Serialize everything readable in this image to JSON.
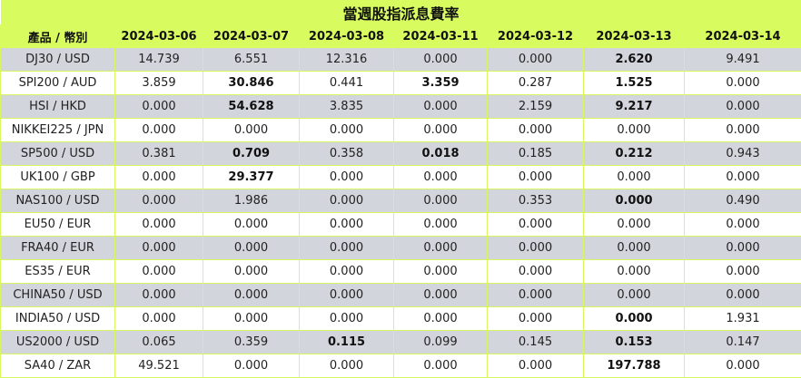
{
  "title": "當週股指派息費率",
  "header": {
    "product_label": "產品 / 幣別",
    "dates": [
      "2024-03-06",
      "2024-03-07",
      "2024-03-08",
      "2024-03-11",
      "2024-03-12",
      "2024-03-13",
      "2024-03-14"
    ]
  },
  "colors": {
    "header_bg": "#d8fb60",
    "stripe_bg": "#d3d5dc",
    "border": "#d6f75f"
  },
  "rows": [
    {
      "product": "DJ30 / USD",
      "values": [
        "14.739",
        "6.551",
        "12.316",
        "0.000",
        "0.000",
        "2.620",
        "9.491"
      ],
      "bold": [
        5
      ]
    },
    {
      "product": "SPI200 / AUD",
      "values": [
        "3.859",
        "30.846",
        "0.441",
        "3.359",
        "0.287",
        "1.525",
        "0.000"
      ],
      "bold": [
        1,
        3,
        5
      ]
    },
    {
      "product": "HSI / HKD",
      "values": [
        "0.000",
        "54.628",
        "3.835",
        "0.000",
        "2.159",
        "9.217",
        "0.000"
      ],
      "bold": [
        1,
        5
      ]
    },
    {
      "product": "NIKKEI225 / JPN",
      "values": [
        "0.000",
        "0.000",
        "0.000",
        "0.000",
        "0.000",
        "0.000",
        "0.000"
      ],
      "bold": []
    },
    {
      "product": "SP500 / USD",
      "values": [
        "0.381",
        "0.709",
        "0.358",
        "0.018",
        "0.185",
        "0.212",
        "0.943"
      ],
      "bold": [
        1,
        3,
        5
      ]
    },
    {
      "product": "UK100 / GBP",
      "values": [
        "0.000",
        "29.377",
        "0.000",
        "0.000",
        "0.000",
        "0.000",
        "0.000"
      ],
      "bold": [
        1
      ]
    },
    {
      "product": "NAS100 / USD",
      "values": [
        "0.000",
        "1.986",
        "0.000",
        "0.000",
        "0.353",
        "0.000",
        "0.490"
      ],
      "bold": [
        5
      ]
    },
    {
      "product": "EU50 / EUR",
      "values": [
        "0.000",
        "0.000",
        "0.000",
        "0.000",
        "0.000",
        "0.000",
        "0.000"
      ],
      "bold": []
    },
    {
      "product": "FRA40 / EUR",
      "values": [
        "0.000",
        "0.000",
        "0.000",
        "0.000",
        "0.000",
        "0.000",
        "0.000"
      ],
      "bold": []
    },
    {
      "product": "ES35 / EUR",
      "values": [
        "0.000",
        "0.000",
        "0.000",
        "0.000",
        "0.000",
        "0.000",
        "0.000"
      ],
      "bold": []
    },
    {
      "product": "CHINA50 / USD",
      "values": [
        "0.000",
        "0.000",
        "0.000",
        "0.000",
        "0.000",
        "0.000",
        "0.000"
      ],
      "bold": []
    },
    {
      "product": "INDIA50 / USD",
      "values": [
        "0.000",
        "0.000",
        "0.000",
        "0.000",
        "0.000",
        "0.000",
        "1.931"
      ],
      "bold": [
        5
      ]
    },
    {
      "product": "US2000 / USD",
      "values": [
        "0.065",
        "0.359",
        "0.115",
        "0.099",
        "0.145",
        "0.153",
        "0.147"
      ],
      "bold": [
        2,
        5
      ]
    },
    {
      "product": "SA40 / ZAR",
      "values": [
        "49.521",
        "0.000",
        "0.000",
        "0.000",
        "0.000",
        "197.788",
        "0.000"
      ],
      "bold": [
        5
      ]
    }
  ]
}
